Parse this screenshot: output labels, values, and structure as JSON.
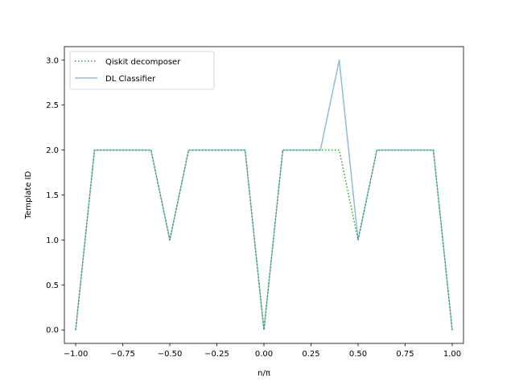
{
  "chart_data": {
    "type": "line",
    "title": "",
    "xlabel": "n/π",
    "ylabel": "Template ID",
    "xlim": [
      -1.06,
      1.06
    ],
    "ylim": [
      -0.15,
      3.15
    ],
    "xticks": [
      -1.0,
      -0.75,
      -0.5,
      -0.25,
      0.0,
      0.25,
      0.5,
      0.75,
      1.0
    ],
    "xtick_labels": [
      "−1.00",
      "−0.75",
      "−0.50",
      "−0.25",
      "0.00",
      "0.25",
      "0.50",
      "0.75",
      "1.00"
    ],
    "yticks": [
      0.0,
      0.5,
      1.0,
      1.5,
      2.0,
      2.5,
      3.0
    ],
    "ytick_labels": [
      "0.0",
      "0.5",
      "1.0",
      "1.5",
      "2.0",
      "2.5",
      "3.0"
    ],
    "grid": false,
    "legend": "top-left",
    "x": [
      -1.0,
      -0.9,
      -0.8,
      -0.7,
      -0.6,
      -0.5,
      -0.4,
      -0.3,
      -0.2,
      -0.1,
      0.0,
      0.1,
      0.2,
      0.3,
      0.4,
      0.5,
      0.6,
      0.7,
      0.8,
      0.9,
      1.0
    ],
    "series": [
      {
        "name": "Qiskit decomposer",
        "style": "dotted",
        "color": "#2ca02c",
        "values": [
          0,
          2,
          2,
          2,
          2,
          1,
          2,
          2,
          2,
          2,
          0,
          2,
          2,
          2,
          2,
          1,
          2,
          2,
          2,
          2,
          0
        ]
      },
      {
        "name": "DL Classifier",
        "style": "solid",
        "color": "#1f77b4",
        "opacity": 0.5,
        "values": [
          0,
          2,
          2,
          2,
          2,
          1,
          2,
          2,
          2,
          2,
          0,
          2,
          2,
          2,
          3,
          1,
          2,
          2,
          2,
          2,
          0
        ]
      }
    ]
  }
}
